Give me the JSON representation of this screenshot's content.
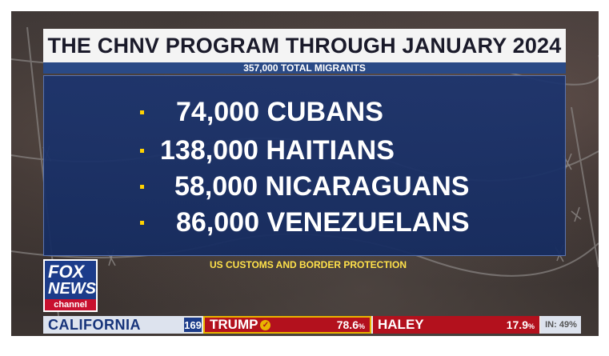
{
  "headline": {
    "title": "THE CHNV PROGRAM THROUGH JANUARY 2024",
    "subtitle": "357,000 TOTAL MIGRANTS"
  },
  "items": [
    {
      "text": "74,000 CUBANS"
    },
    {
      "text": "138,000 HAITIANS"
    },
    {
      "text": "58,000 NICARAGUANS"
    },
    {
      "text": "86,000 VENEZUELANS"
    }
  ],
  "source": "US CUSTOMS AND BORDER PROTECTION",
  "logo": {
    "fox": "FOX",
    "news": "NEWS",
    "channel": "channel"
  },
  "ticker": {
    "state": "CALIFORNIA",
    "delegates": "169",
    "candidates": [
      {
        "name": "TRUMP",
        "pct": "78.6",
        "pct_unit": "%",
        "winner": true
      },
      {
        "name": "HALEY",
        "pct": "17.9",
        "pct_unit": "%",
        "winner": false
      }
    ],
    "reporting_label": "IN:",
    "reporting_value": "49%"
  },
  "colors": {
    "panel_blue": "#1c3470",
    "bullet_yellow": "#ffd200",
    "fox_red": "#b3111d",
    "fox_blue": "#1c3c8a"
  }
}
